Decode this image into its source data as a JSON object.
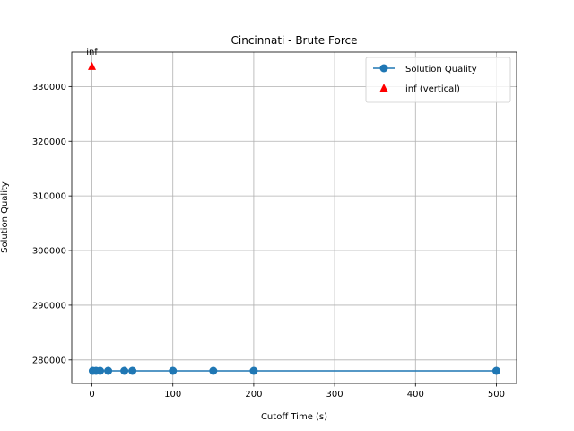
{
  "chart_data": {
    "type": "line",
    "title": "Cincinnati - Brute Force",
    "xlabel": "Cutoff Time (s)",
    "ylabel": "Solution Quality",
    "xlim": [
      -25,
      525
    ],
    "ylim": [
      275700,
      336300
    ],
    "xticks": [
      0,
      100,
      200,
      300,
      400,
      500
    ],
    "yticks": [
      280000,
      290000,
      300000,
      310000,
      320000,
      330000
    ],
    "grid": true,
    "legend_position": "upper right",
    "series": [
      {
        "name": "Solution Quality",
        "marker": "circle",
        "color": "#1f77b4",
        "x": [
          1,
          5,
          10,
          20,
          40,
          50,
          100,
          150,
          200,
          500
        ],
        "y": [
          278000,
          278000,
          278000,
          278000,
          278000,
          278000,
          278000,
          278000,
          278000,
          278000
        ]
      },
      {
        "name": "inf (vertical)",
        "marker": "triangle",
        "color": "#ff0000",
        "x": [
          0
        ],
        "y": [
          333700
        ]
      }
    ],
    "annotations": [
      {
        "text": "inf",
        "x": 0,
        "y": 336300
      }
    ]
  }
}
